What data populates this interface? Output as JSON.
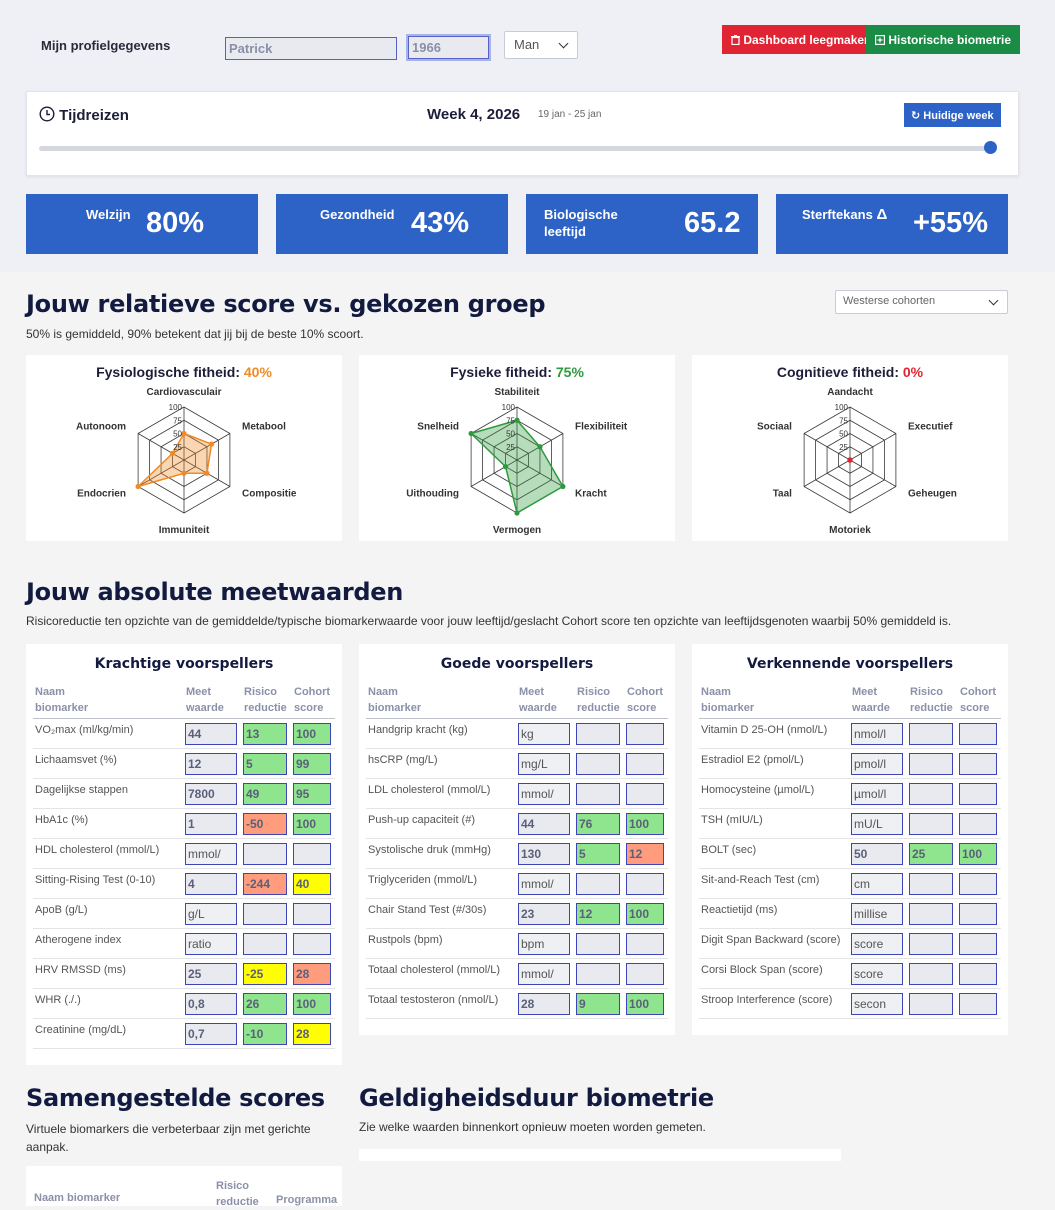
{
  "profile": {
    "label": "Mijn profielgegevens",
    "name_value": "Patrick",
    "year_value": "1966",
    "gender": "Man",
    "clear_button": "Dashboard leegmaken",
    "history_button": "Historische biometrie"
  },
  "timetravel": {
    "title": "Tijdreizen",
    "week": "Week 4, 2026",
    "range": "19 jan - 25 jan",
    "current_week_button": "Huidige week",
    "slider_fraction": 1.0
  },
  "metrics": [
    {
      "label": "Welzijn",
      "value": "80%"
    },
    {
      "label": "Gezondheid",
      "value": "43%"
    },
    {
      "label": "Biologische leeftijd",
      "value": "65.2"
    },
    {
      "label": "Sterftekans",
      "delta": "Δ",
      "value": "+55%"
    }
  ],
  "relative": {
    "title": "Jouw relatieve score vs. gekozen groep",
    "subtitle": "50% is gemiddeld, 90% betekent dat jij bij de beste 10% scoort.",
    "cohort_select": "Westerse cohorten"
  },
  "chart_data": [
    {
      "type": "radar",
      "title": "Fysiologische fitheid:",
      "score": "40%",
      "score_color": "#f08a24",
      "color": "#f08a24",
      "axes": [
        "Cardiovasculair",
        "Metabool",
        "Compositie",
        "Immuniteit",
        "Endocrien",
        "Autonoom"
      ],
      "values": [
        50,
        60,
        50,
        25,
        100,
        25
      ],
      "ticks": [
        25,
        50,
        75,
        100
      ],
      "rlim": [
        0,
        100
      ]
    },
    {
      "type": "radar",
      "title": "Fysieke fitheid:",
      "score": "75%",
      "score_color": "#2e9a3e",
      "color": "#2e9a3e",
      "axes": [
        "Stabiliteit",
        "Flexibiliteit",
        "Kracht",
        "Vermogen",
        "Uithouding",
        "Snelheid"
      ],
      "values": [
        75,
        50,
        100,
        100,
        25,
        100
      ],
      "ticks": [
        25,
        50,
        75,
        100
      ],
      "rlim": [
        0,
        100
      ]
    },
    {
      "type": "radar",
      "title": "Cognitieve fitheid:",
      "score": "0%",
      "score_color": "#e02433",
      "color": "#e02433",
      "axes": [
        "Aandacht",
        "Executief",
        "Geheugen",
        "Motoriek",
        "Taal",
        "Sociaal"
      ],
      "values": [
        0,
        0,
        0,
        0,
        0,
        0
      ],
      "ticks": [
        25,
        50,
        75,
        100
      ],
      "rlim": [
        0,
        100
      ]
    }
  ],
  "absolute": {
    "title": "Jouw absolute meetwaarden",
    "subtitle": "Risicoreductie ten opzichte van de gemiddelde/typische biomarkerwaarde voor jouw leeftijd/geslacht Cohort score ten opzichte van leeftijdsgenoten waarbij 50% gemiddeld is.",
    "headers": {
      "name": "Naam biomarker",
      "value": "Meet waarde",
      "risk": "Risico reductie",
      "cohort": "Cohort score"
    },
    "tables": [
      {
        "title": "Krachtige voorspellers",
        "rows": [
          {
            "name": "VO₂max (ml/kg/min)",
            "value": "44",
            "risk": "13",
            "risk_color": "g",
            "cohort": "100",
            "cohort_color": "g"
          },
          {
            "name": "Lichaamsvet (%)",
            "value": "12",
            "risk": "5",
            "risk_color": "g",
            "cohort": "99",
            "cohort_color": "g"
          },
          {
            "name": "Dagelijkse stappen",
            "value": "7800",
            "risk": "49",
            "risk_color": "g",
            "cohort": "95",
            "cohort_color": "g"
          },
          {
            "name": "HbA1c (%)",
            "value": "1",
            "risk": "-50",
            "risk_color": "o",
            "cohort": "100",
            "cohort_color": "g"
          },
          {
            "name": "HDL cholesterol (mmol/L)",
            "value": "mmol/",
            "unit": true,
            "risk": "",
            "cohort": ""
          },
          {
            "name": "Sitting-Rising Test (0-10)",
            "value": "4",
            "risk": "-244",
            "risk_color": "o",
            "cohort": "40",
            "cohort_color": "y"
          },
          {
            "name": "ApoB (g/L)",
            "value": "g/L",
            "unit": true,
            "risk": "",
            "cohort": ""
          },
          {
            "name": "Atherogene index",
            "value": "ratio",
            "unit": true,
            "risk": "",
            "cohort": ""
          },
          {
            "name": "HRV RMSSD (ms)",
            "value": "25",
            "risk": "-25",
            "risk_color": "y",
            "cohort": "28",
            "cohort_color": "o"
          },
          {
            "name": "WHR (./.)",
            "value": "0,8",
            "risk": "26",
            "risk_color": "g",
            "cohort": "100",
            "cohort_color": "g"
          },
          {
            "name": "Creatinine (mg/dL)",
            "value": "0,7",
            "risk": "-10",
            "risk_color": "g",
            "cohort": "28",
            "cohort_color": "y"
          }
        ]
      },
      {
        "title": "Goede voorspellers",
        "rows": [
          {
            "name": "Handgrip kracht (kg)",
            "value": "kg",
            "unit": true,
            "risk": "",
            "cohort": ""
          },
          {
            "name": "hsCRP (mg/L)",
            "value": "mg/L",
            "unit": true,
            "risk": "",
            "cohort": ""
          },
          {
            "name": "LDL cholesterol (mmol/L)",
            "value": "mmol/",
            "unit": true,
            "risk": "",
            "cohort": ""
          },
          {
            "name": "Push-up capaciteit (#)",
            "value": "44",
            "risk": "76",
            "risk_color": "g",
            "cohort": "100",
            "cohort_color": "g"
          },
          {
            "name": "Systolische druk (mmHg)",
            "value": "130",
            "risk": "5",
            "risk_color": "g",
            "cohort": "12",
            "cohort_color": "o"
          },
          {
            "name": "Triglyceriden (mmol/L)",
            "value": "mmol/",
            "unit": true,
            "risk": "",
            "cohort": ""
          },
          {
            "name": "Chair Stand Test (#/30s)",
            "value": "23",
            "risk": "12",
            "risk_color": "g",
            "cohort": "100",
            "cohort_color": "g"
          },
          {
            "name": "Rustpols (bpm)",
            "value": "bpm",
            "unit": true,
            "risk": "",
            "cohort": ""
          },
          {
            "name": "Totaal cholesterol (mmol/L)",
            "value": "mmol/",
            "unit": true,
            "risk": "",
            "cohort": ""
          },
          {
            "name": "Totaal testosteron (nmol/L)",
            "value": "28",
            "risk": "9",
            "risk_color": "g",
            "cohort": "100",
            "cohort_color": "g"
          }
        ]
      },
      {
        "title": "Verkennende voorspellers",
        "rows": [
          {
            "name": "Vitamin D 25-OH (nmol/L)",
            "value": "nmol/l",
            "unit": true,
            "risk": "",
            "cohort": ""
          },
          {
            "name": "Estradiol E2 (pmol/L)",
            "value": "pmol/l",
            "unit": true,
            "risk": "",
            "cohort": ""
          },
          {
            "name": "Homocysteine (µmol/L)",
            "value": "µmol/l",
            "unit": true,
            "risk": "",
            "cohort": ""
          },
          {
            "name": "TSH (mIU/L)",
            "value": "mU/L",
            "unit": true,
            "risk": "",
            "cohort": ""
          },
          {
            "name": "BOLT (sec)",
            "value": "50",
            "risk": "25",
            "risk_color": "g",
            "cohort": "100",
            "cohort_color": "g"
          },
          {
            "name": "Sit-and-Reach Test (cm)",
            "value": "cm",
            "unit": true,
            "risk": "",
            "cohort": ""
          },
          {
            "name": "Reactietijd (ms)",
            "value": "millise",
            "unit": true,
            "risk": "",
            "cohort": ""
          },
          {
            "name": "Digit Span Backward (score)",
            "value": "score",
            "unit": true,
            "risk": "",
            "cohort": ""
          },
          {
            "name": "Corsi Block Span (score)",
            "value": "score",
            "unit": true,
            "risk": "",
            "cohort": ""
          },
          {
            "name": "Stroop Interference (score)",
            "value": "secon",
            "unit": true,
            "risk": "",
            "cohort": ""
          }
        ]
      }
    ]
  },
  "composite": {
    "title": "Samengestelde scores",
    "subtitle": "Virtuele biomarkers die verbeterbaar zijn met gerichte aanpak.",
    "headers": {
      "name": "Naam biomarker",
      "risk": "Risico reductie",
      "program": "Programma"
    }
  },
  "validity": {
    "title": "Geldigheidsduur biometrie",
    "subtitle": "Zie welke waarden binnenkort opnieuw moeten worden gemeten."
  },
  "icons": {
    "clock": "clock-icon",
    "trash": "trash-icon",
    "plus_square": "plus-square-icon",
    "refresh": "refresh-icon",
    "chevron": "chevron-down-icon"
  }
}
